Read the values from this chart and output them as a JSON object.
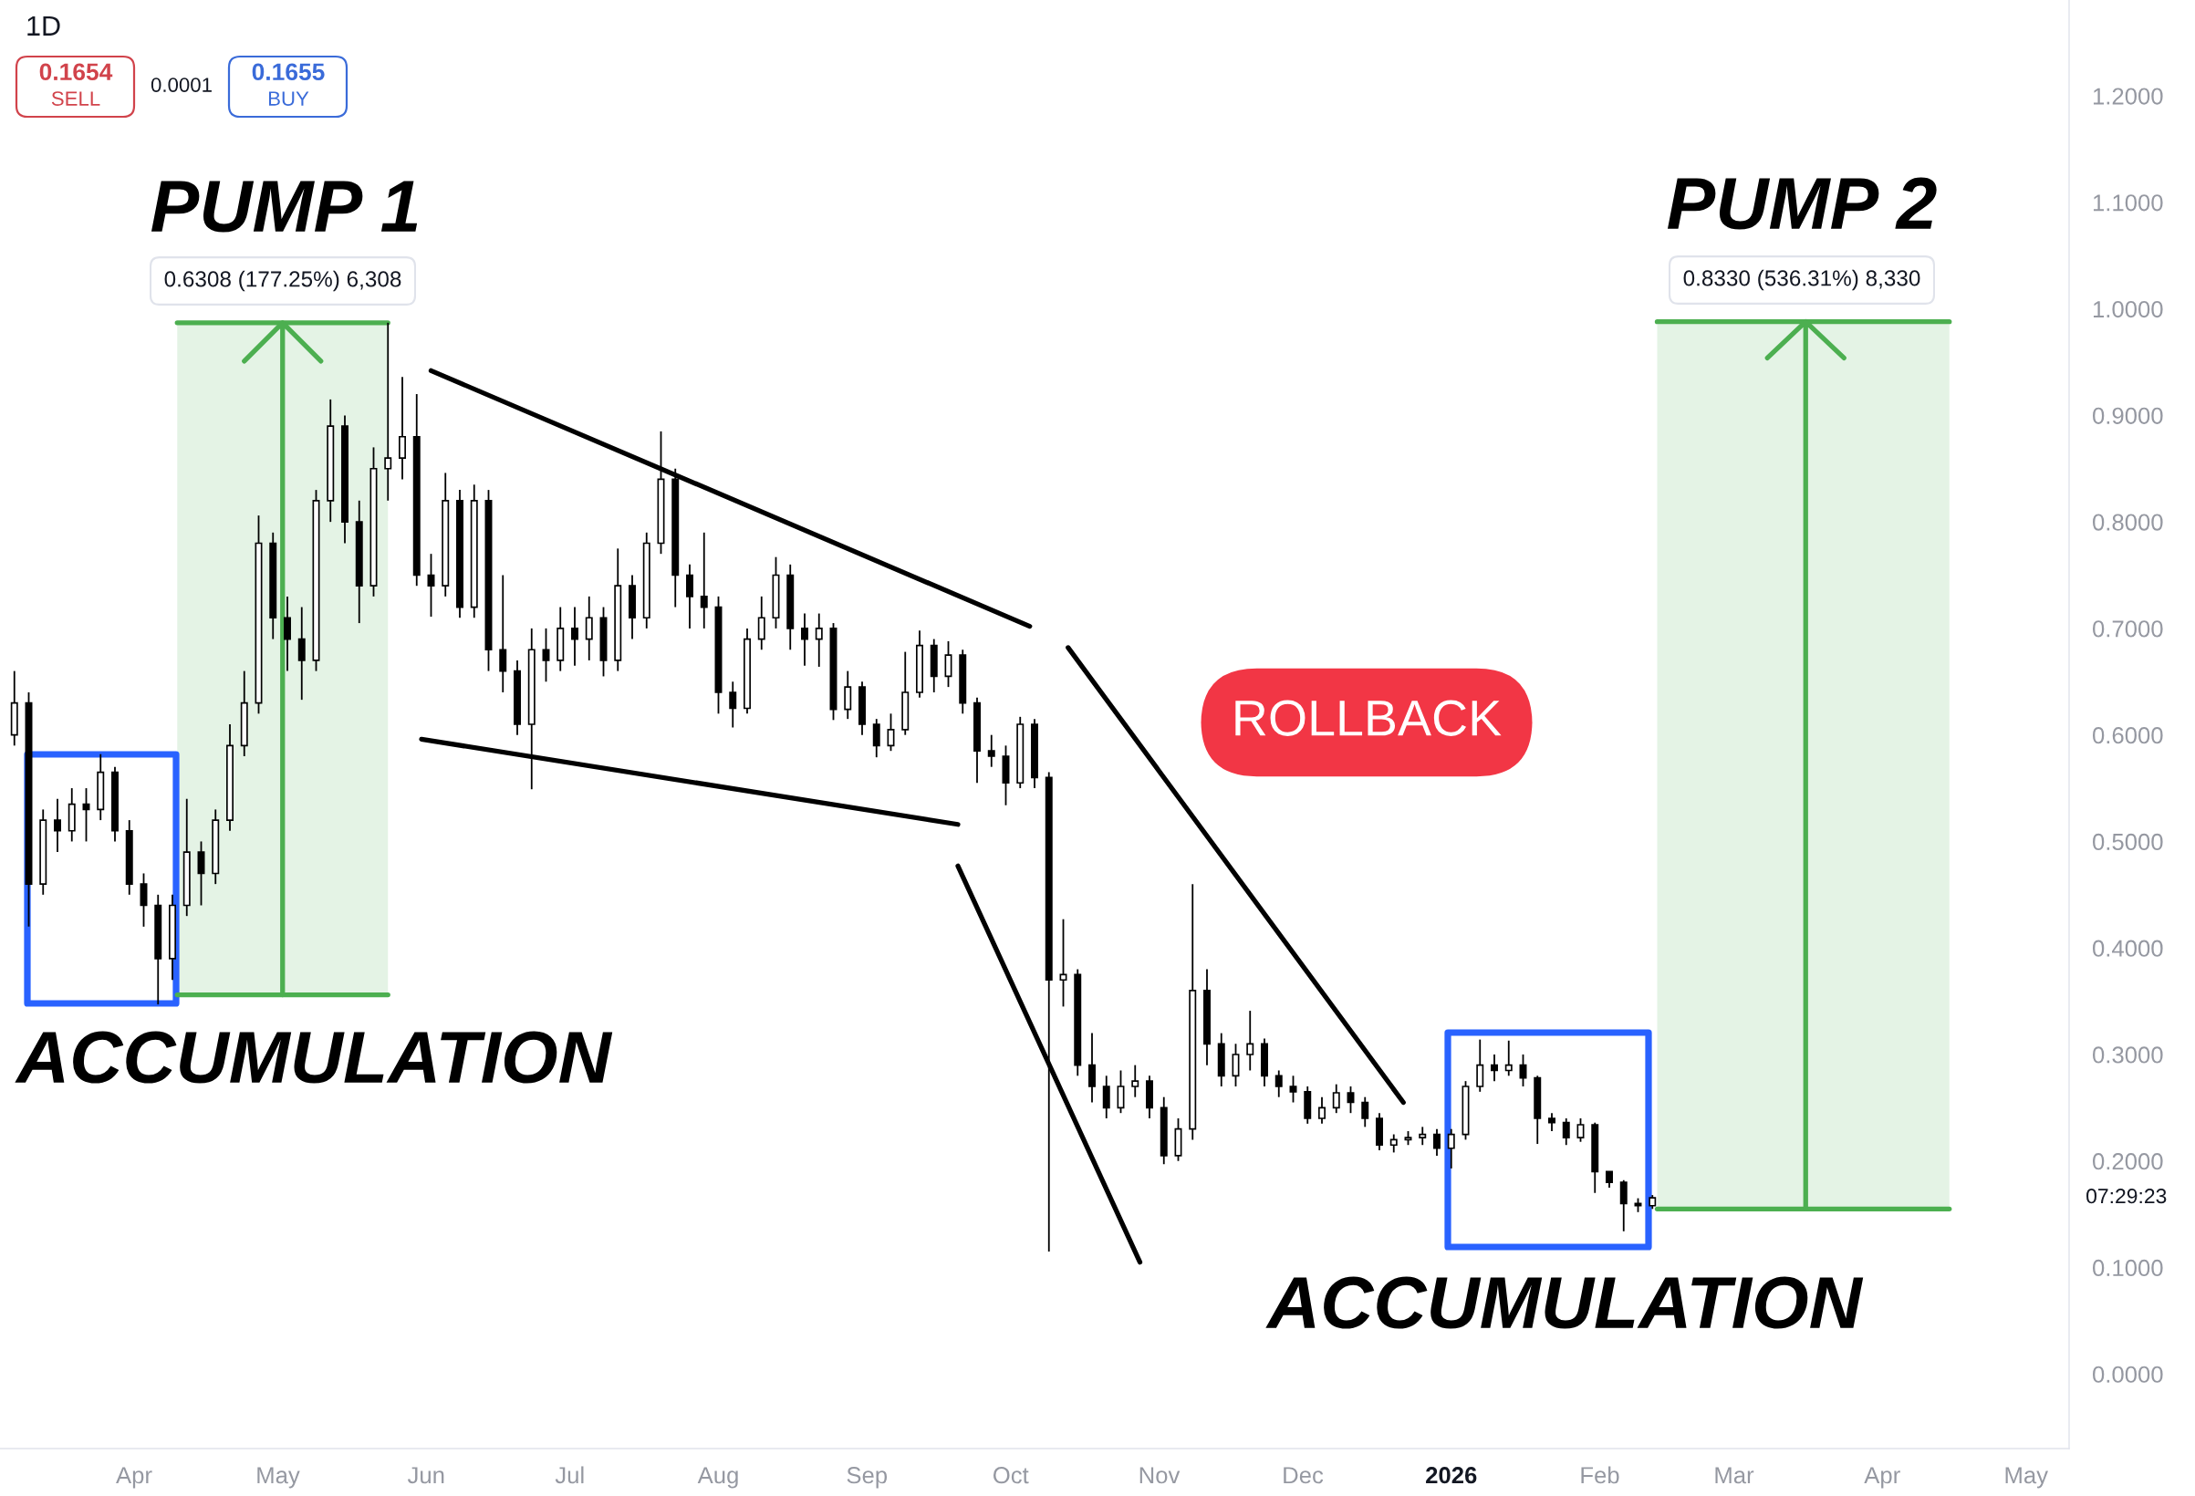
{
  "chart_data": {
    "type": "candlestick",
    "title": "1D",
    "x": [
      "2025-03-07",
      "2025-03-10",
      "2025-03-13",
      "2025-03-16",
      "2025-03-19",
      "2025-03-22",
      "2025-03-25",
      "2025-03-28",
      "2025-03-31",
      "2025-04-03",
      "2025-04-06",
      "2025-04-09",
      "2025-04-12",
      "2025-04-15",
      "2025-04-18",
      "2025-04-21",
      "2025-04-24",
      "2025-04-27",
      "2025-04-30",
      "2025-05-03",
      "2025-05-06",
      "2025-05-09",
      "2025-05-12",
      "2025-05-15",
      "2025-05-18",
      "2025-05-21",
      "2025-05-24",
      "2025-05-27",
      "2025-05-30",
      "2025-06-02",
      "2025-06-05",
      "2025-06-08",
      "2025-06-11",
      "2025-06-14",
      "2025-06-17",
      "2025-06-20",
      "2025-06-23",
      "2025-06-26",
      "2025-06-29",
      "2025-07-02",
      "2025-07-05",
      "2025-07-08",
      "2025-07-11",
      "2025-07-14",
      "2025-07-17",
      "2025-07-20",
      "2025-07-23",
      "2025-07-26",
      "2025-07-29",
      "2025-08-01",
      "2025-08-04",
      "2025-08-07",
      "2025-08-10",
      "2025-08-13",
      "2025-08-16",
      "2025-08-19",
      "2025-08-22",
      "2025-08-25",
      "2025-08-28",
      "2025-08-31",
      "2025-09-03",
      "2025-09-06",
      "2025-09-09",
      "2025-09-12",
      "2025-09-15",
      "2025-09-18",
      "2025-09-21",
      "2025-09-24",
      "2025-09-27",
      "2025-09-30",
      "2025-10-03",
      "2025-10-06",
      "2025-10-09",
      "2025-10-12",
      "2025-10-15",
      "2025-10-18",
      "2025-10-21",
      "2025-10-24",
      "2025-10-27",
      "2025-10-30",
      "2025-11-02",
      "2025-11-05",
      "2025-11-08",
      "2025-11-11",
      "2025-11-14",
      "2025-11-17",
      "2025-11-20",
      "2025-11-23",
      "2025-11-26",
      "2025-11-29",
      "2025-12-02",
      "2025-12-05",
      "2025-12-08",
      "2025-12-11",
      "2025-12-14",
      "2025-12-17",
      "2025-12-20",
      "2025-12-23",
      "2025-12-26",
      "2025-12-29",
      "2026-01-01",
      "2026-01-04",
      "2026-01-07",
      "2026-01-10",
      "2026-01-13",
      "2026-01-16",
      "2026-01-19",
      "2026-01-22",
      "2026-01-25",
      "2026-01-28",
      "2026-01-31",
      "2026-02-03",
      "2026-02-06",
      "2026-02-09",
      "2026-02-12"
    ],
    "ohlc": [
      [
        0.6,
        0.66,
        0.59,
        0.63
      ],
      [
        0.63,
        0.64,
        0.42,
        0.46
      ],
      [
        0.46,
        0.53,
        0.45,
        0.52
      ],
      [
        0.52,
        0.54,
        0.49,
        0.51
      ],
      [
        0.51,
        0.55,
        0.5,
        0.535
      ],
      [
        0.535,
        0.55,
        0.5,
        0.53
      ],
      [
        0.53,
        0.582,
        0.52,
        0.565
      ],
      [
        0.565,
        0.57,
        0.5,
        0.51
      ],
      [
        0.51,
        0.52,
        0.45,
        0.46
      ],
      [
        0.46,
        0.47,
        0.42,
        0.44
      ],
      [
        0.44,
        0.45,
        0.347,
        0.39
      ],
      [
        0.39,
        0.45,
        0.37,
        0.44
      ],
      [
        0.44,
        0.54,
        0.43,
        0.49
      ],
      [
        0.49,
        0.5,
        0.44,
        0.47
      ],
      [
        0.47,
        0.53,
        0.46,
        0.52
      ],
      [
        0.52,
        0.61,
        0.51,
        0.59
      ],
      [
        0.59,
        0.66,
        0.58,
        0.63
      ],
      [
        0.63,
        0.806,
        0.62,
        0.78
      ],
      [
        0.78,
        0.79,
        0.69,
        0.71
      ],
      [
        0.71,
        0.73,
        0.66,
        0.69
      ],
      [
        0.69,
        0.72,
        0.633,
        0.67
      ],
      [
        0.67,
        0.83,
        0.66,
        0.82
      ],
      [
        0.82,
        0.915,
        0.8,
        0.89
      ],
      [
        0.89,
        0.9,
        0.78,
        0.8
      ],
      [
        0.8,
        0.82,
        0.705,
        0.74
      ],
      [
        0.74,
        0.87,
        0.73,
        0.85
      ],
      [
        0.85,
        0.987,
        0.82,
        0.86
      ],
      [
        0.86,
        0.936,
        0.84,
        0.88
      ],
      [
        0.88,
        0.92,
        0.74,
        0.75
      ],
      [
        0.75,
        0.77,
        0.711,
        0.74
      ],
      [
        0.74,
        0.846,
        0.73,
        0.82
      ],
      [
        0.82,
        0.83,
        0.71,
        0.72
      ],
      [
        0.72,
        0.835,
        0.71,
        0.82
      ],
      [
        0.82,
        0.83,
        0.66,
        0.68
      ],
      [
        0.68,
        0.75,
        0.64,
        0.66
      ],
      [
        0.66,
        0.67,
        0.6,
        0.61
      ],
      [
        0.61,
        0.7,
        0.549,
        0.68
      ],
      [
        0.68,
        0.7,
        0.65,
        0.67
      ],
      [
        0.67,
        0.72,
        0.66,
        0.7
      ],
      [
        0.7,
        0.72,
        0.665,
        0.69
      ],
      [
        0.69,
        0.73,
        0.67,
        0.71
      ],
      [
        0.71,
        0.72,
        0.655,
        0.67
      ],
      [
        0.67,
        0.775,
        0.66,
        0.74
      ],
      [
        0.74,
        0.75,
        0.69,
        0.71
      ],
      [
        0.71,
        0.79,
        0.7,
        0.78
      ],
      [
        0.78,
        0.885,
        0.77,
        0.84
      ],
      [
        0.84,
        0.85,
        0.72,
        0.75
      ],
      [
        0.75,
        0.76,
        0.7,
        0.73
      ],
      [
        0.73,
        0.79,
        0.7,
        0.72
      ],
      [
        0.72,
        0.73,
        0.62,
        0.64
      ],
      [
        0.64,
        0.65,
        0.607,
        0.625
      ],
      [
        0.625,
        0.7,
        0.62,
        0.69
      ],
      [
        0.69,
        0.73,
        0.68,
        0.71
      ],
      [
        0.71,
        0.767,
        0.7,
        0.75
      ],
      [
        0.75,
        0.76,
        0.68,
        0.7
      ],
      [
        0.7,
        0.714,
        0.665,
        0.69
      ],
      [
        0.69,
        0.714,
        0.664,
        0.7
      ],
      [
        0.7,
        0.705,
        0.614,
        0.624
      ],
      [
        0.624,
        0.66,
        0.615,
        0.645
      ],
      [
        0.645,
        0.65,
        0.6,
        0.61
      ],
      [
        0.61,
        0.615,
        0.579,
        0.59
      ],
      [
        0.59,
        0.62,
        0.585,
        0.605
      ],
      [
        0.605,
        0.678,
        0.6,
        0.64
      ],
      [
        0.64,
        0.698,
        0.635,
        0.684
      ],
      [
        0.684,
        0.69,
        0.64,
        0.655
      ],
      [
        0.655,
        0.688,
        0.645,
        0.675
      ],
      [
        0.675,
        0.68,
        0.62,
        0.63
      ],
      [
        0.63,
        0.635,
        0.555,
        0.585
      ],
      [
        0.585,
        0.6,
        0.57,
        0.58
      ],
      [
        0.58,
        0.59,
        0.534,
        0.555
      ],
      [
        0.555,
        0.617,
        0.55,
        0.61
      ],
      [
        0.61,
        0.615,
        0.55,
        0.56
      ],
      [
        0.56,
        0.565,
        0.115,
        0.37
      ],
      [
        0.37,
        0.427,
        0.345,
        0.375
      ],
      [
        0.375,
        0.38,
        0.28,
        0.29
      ],
      [
        0.29,
        0.32,
        0.255,
        0.27
      ],
      [
        0.27,
        0.28,
        0.24,
        0.25
      ],
      [
        0.25,
        0.285,
        0.245,
        0.27
      ],
      [
        0.27,
        0.29,
        0.26,
        0.275
      ],
      [
        0.275,
        0.28,
        0.24,
        0.25
      ],
      [
        0.25,
        0.26,
        0.197,
        0.205
      ],
      [
        0.205,
        0.24,
        0.2,
        0.23
      ],
      [
        0.23,
        0.46,
        0.22,
        0.36
      ],
      [
        0.36,
        0.38,
        0.29,
        0.31
      ],
      [
        0.31,
        0.32,
        0.27,
        0.28
      ],
      [
        0.28,
        0.31,
        0.27,
        0.3
      ],
      [
        0.3,
        0.341,
        0.285,
        0.31
      ],
      [
        0.31,
        0.315,
        0.27,
        0.28
      ],
      [
        0.28,
        0.285,
        0.26,
        0.27
      ],
      [
        0.27,
        0.28,
        0.255,
        0.265
      ],
      [
        0.265,
        0.27,
        0.235,
        0.24
      ],
      [
        0.24,
        0.26,
        0.235,
        0.25
      ],
      [
        0.25,
        0.272,
        0.245,
        0.264
      ],
      [
        0.264,
        0.27,
        0.245,
        0.255
      ],
      [
        0.255,
        0.26,
        0.232,
        0.24
      ],
      [
        0.24,
        0.245,
        0.21,
        0.215
      ],
      [
        0.215,
        0.225,
        0.208,
        0.22
      ],
      [
        0.22,
        0.228,
        0.215,
        0.222
      ],
      [
        0.222,
        0.232,
        0.215,
        0.225
      ],
      [
        0.225,
        0.23,
        0.205,
        0.212
      ],
      [
        0.212,
        0.23,
        0.193,
        0.225
      ],
      [
        0.225,
        0.275,
        0.22,
        0.27
      ],
      [
        0.27,
        0.314,
        0.265,
        0.29
      ],
      [
        0.29,
        0.3,
        0.275,
        0.285
      ],
      [
        0.285,
        0.313,
        0.28,
        0.29
      ],
      [
        0.29,
        0.3,
        0.27,
        0.278
      ],
      [
        0.278,
        0.28,
        0.216,
        0.24
      ],
      [
        0.24,
        0.245,
        0.228,
        0.236
      ],
      [
        0.236,
        0.24,
        0.215,
        0.222
      ],
      [
        0.222,
        0.24,
        0.218,
        0.234
      ],
      [
        0.234,
        0.236,
        0.17,
        0.19
      ],
      [
        0.19,
        0.19,
        0.175,
        0.18
      ],
      [
        0.18,
        0.182,
        0.134,
        0.16
      ],
      [
        0.16,
        0.165,
        0.152,
        0.158
      ],
      [
        0.158,
        0.168,
        0.155,
        0.1654
      ]
    ],
    "series": [
      {
        "type": "line",
        "color": "#4caf50",
        "x": [
          "2025-04-10",
          "2025-05-24"
        ],
        "values": [
          0.987,
          0.987
        ],
        "lower": [
          0.356,
          0.356
        ],
        "upper": [
          0.987,
          0.987
        ]
      },
      {
        "type": "line",
        "color": "#4caf50",
        "x": [
          "2025-04-10",
          "2025-05-24"
        ],
        "values": [
          0.356,
          0.356
        ]
      },
      {
        "type": "line",
        "color": "#4caf50",
        "x": [
          "2025-05-02",
          "2025-05-02",
          "2025-04-24",
          "2025-05-02",
          "2025-05-10"
        ],
        "values": [
          0.356,
          0.987,
          0.951,
          0.987,
          0.951
        ]
      },
      {
        "type": "line",
        "color": "#4caf50",
        "x": [
          "2026-02-13",
          "2026-04-15"
        ],
        "values": [
          0.988,
          0.988
        ],
        "lower": [
          0.155,
          0.155
        ],
        "upper": [
          0.988,
          0.988
        ]
      },
      {
        "type": "line",
        "color": "#4caf50",
        "x": [
          "2026-02-13",
          "2026-04-15"
        ],
        "values": [
          0.155,
          0.155
        ]
      },
      {
        "type": "line",
        "color": "#4caf50",
        "x": [
          "2026-03-16",
          "2026-03-16",
          "2026-03-08",
          "2026-03-16",
          "2026-03-24"
        ],
        "values": [
          0.155,
          0.988,
          0.954,
          0.988,
          0.954
        ]
      },
      {
        "type": "line",
        "color": "#000000",
        "x": [
          "2025-06-02",
          "2025-10-05"
        ],
        "values": [
          0.942,
          0.702
        ]
      },
      {
        "type": "line",
        "color": "#000000",
        "x": [
          "2025-05-31",
          "2025-09-20"
        ],
        "values": [
          0.596,
          0.516
        ]
      },
      {
        "type": "line",
        "color": "#000000",
        "x": [
          "2025-10-13",
          "2025-12-22"
        ],
        "values": [
          0.682,
          0.255
        ]
      },
      {
        "type": "line",
        "color": "#000000",
        "x": [
          "2025-09-20",
          "2025-10-28"
        ],
        "values": [
          0.477,
          0.105
        ]
      }
    ],
    "xlim": [
      "2025-03-04",
      "2026-05-10"
    ],
    "xticks": [
      {
        "value": "2025-04-01",
        "label": "Apr"
      },
      {
        "value": "2025-05-01",
        "label": "May"
      },
      {
        "value": "2025-06-01",
        "label": "Jun"
      },
      {
        "value": "2025-07-01",
        "label": "Jul"
      },
      {
        "value": "2025-08-01",
        "label": "Aug"
      },
      {
        "value": "2025-09-01",
        "label": "Sep"
      },
      {
        "value": "2025-10-01",
        "label": "Oct"
      },
      {
        "value": "2025-11-01",
        "label": "Nov"
      },
      {
        "value": "2025-12-01",
        "label": "Dec"
      },
      {
        "value": "2026-01-01",
        "label": "2026"
      },
      {
        "value": "2026-02-01",
        "label": "Feb"
      },
      {
        "value": "2026-03-01",
        "label": "Mar"
      },
      {
        "value": "2026-04-01",
        "label": "Apr"
      },
      {
        "value": "2026-05-01",
        "label": "May"
      }
    ],
    "ylim": [
      -0.07,
      1.29
    ],
    "yticks": [
      {
        "value": 0,
        "label": "0.0000"
      },
      {
        "value": 0.1,
        "label": "0.1000"
      },
      {
        "value": 0.2,
        "label": "0.2000"
      },
      {
        "value": 0.3,
        "label": "0.3000"
      },
      {
        "value": 0.4,
        "label": "0.4000"
      },
      {
        "value": 0.5,
        "label": "0.5000"
      },
      {
        "value": 0.6,
        "label": "0.6000"
      },
      {
        "value": 0.7,
        "label": "0.7000"
      },
      {
        "value": 0.8,
        "label": "0.8000"
      },
      {
        "value": 0.9,
        "label": "0.9000"
      },
      {
        "value": 1.0,
        "label": "1.0000"
      },
      {
        "value": 1.1,
        "label": "1.1000"
      },
      {
        "value": 1.2,
        "label": "1.2000"
      }
    ],
    "annotations": [
      "0.1654",
      "SELL",
      "0.0001",
      "0.1655",
      "BUY",
      "PUMP 1",
      "0.6308 (177.25%) 6,308",
      "PUMP 2",
      "0.8330 (536.31%) 8,330",
      "ROLLBACK",
      "ACCUMULATION",
      "ACCUMULATION",
      "07:29:23"
    ]
  }
}
